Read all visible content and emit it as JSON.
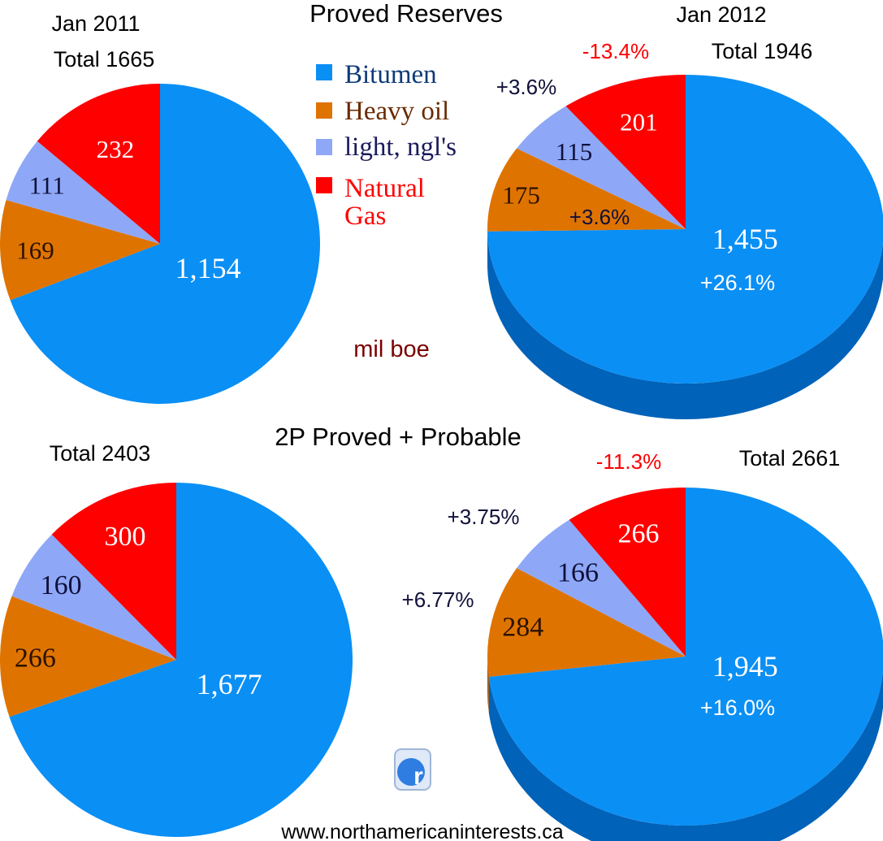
{
  "colors": {
    "Bitumen": "#0a8ff5",
    "Heavy oil": "#df7300",
    "light, ngl's": "#8ea8f7",
    "Natural Gas": "#ff0000",
    "bitumen_side": "#0062b8",
    "heavy_side": "#a65300",
    "annotation_dark": "#10103a",
    "annotation_red": "#ff0000",
    "unit_color": "#7a0000",
    "legend_bitumen_text": "#0d3a78",
    "legend_heavy_text": "#6a2a00",
    "legend_light_text": "#1a1a5a",
    "legend_gas_text": "#ff0000"
  },
  "header": {
    "proved_title": "Proved Reserves",
    "twop_title": "2P Proved + Probable",
    "unit_label": "mil boe",
    "website": "www.northamericaninterests.ca",
    "logo_letter": "r"
  },
  "legend": {
    "items": [
      {
        "label": "Bitumen",
        "color_key": "Bitumen"
      },
      {
        "label": "Heavy oil",
        "color_key": "Heavy oil"
      },
      {
        "label": "light, ngl's",
        "color_key": "light, ngl's"
      },
      {
        "label": "Natural",
        "label2": "Gas",
        "color_key": "Natural Gas"
      }
    ]
  },
  "chart_data": [
    {
      "type": "pie",
      "title": "Jan 2011",
      "total_label": "Total 1665",
      "categories": [
        "Bitumen",
        "Heavy oil",
        "light, ngl's",
        "Natural Gas"
      ],
      "values": [
        1154,
        169,
        111,
        232
      ],
      "value_labels": [
        "1,154",
        "169",
        "111",
        "232"
      ],
      "start": "top",
      "direction": "clockwise",
      "perspective": false
    },
    {
      "type": "pie",
      "title": "Jan 2012",
      "total_label": "Total 1946",
      "categories": [
        "Bitumen",
        "Heavy oil",
        "light, ngl's",
        "Natural Gas"
      ],
      "values": [
        1455,
        175,
        115,
        201
      ],
      "value_labels": [
        "1,455",
        "175",
        "115",
        "201"
      ],
      "annotations": [
        "+26.1%",
        "+3.6%",
        "+3.6%",
        "-13.4%"
      ],
      "start": "top",
      "direction": "clockwise",
      "perspective": true
    },
    {
      "type": "pie",
      "title": "",
      "total_label": "Total 2403",
      "categories": [
        "Bitumen",
        "Heavy oil",
        "light, ngl's",
        "Natural Gas"
      ],
      "values": [
        1677,
        266,
        160,
        300
      ],
      "value_labels": [
        "1,677",
        "266",
        "160",
        "300"
      ],
      "start": "top",
      "direction": "clockwise",
      "perspective": false
    },
    {
      "type": "pie",
      "title": "",
      "total_label": "Total 2661",
      "categories": [
        "Bitumen",
        "Heavy oil",
        "light, ngl's",
        "Natural Gas"
      ],
      "values": [
        1945,
        284,
        166,
        266
      ],
      "value_labels": [
        "1,945",
        "284",
        "166",
        "266"
      ],
      "annotations": [
        "+16.0%",
        "+6.77%",
        "+3.75%",
        "-11.3%"
      ],
      "start": "top",
      "direction": "clockwise",
      "perspective": true
    }
  ]
}
